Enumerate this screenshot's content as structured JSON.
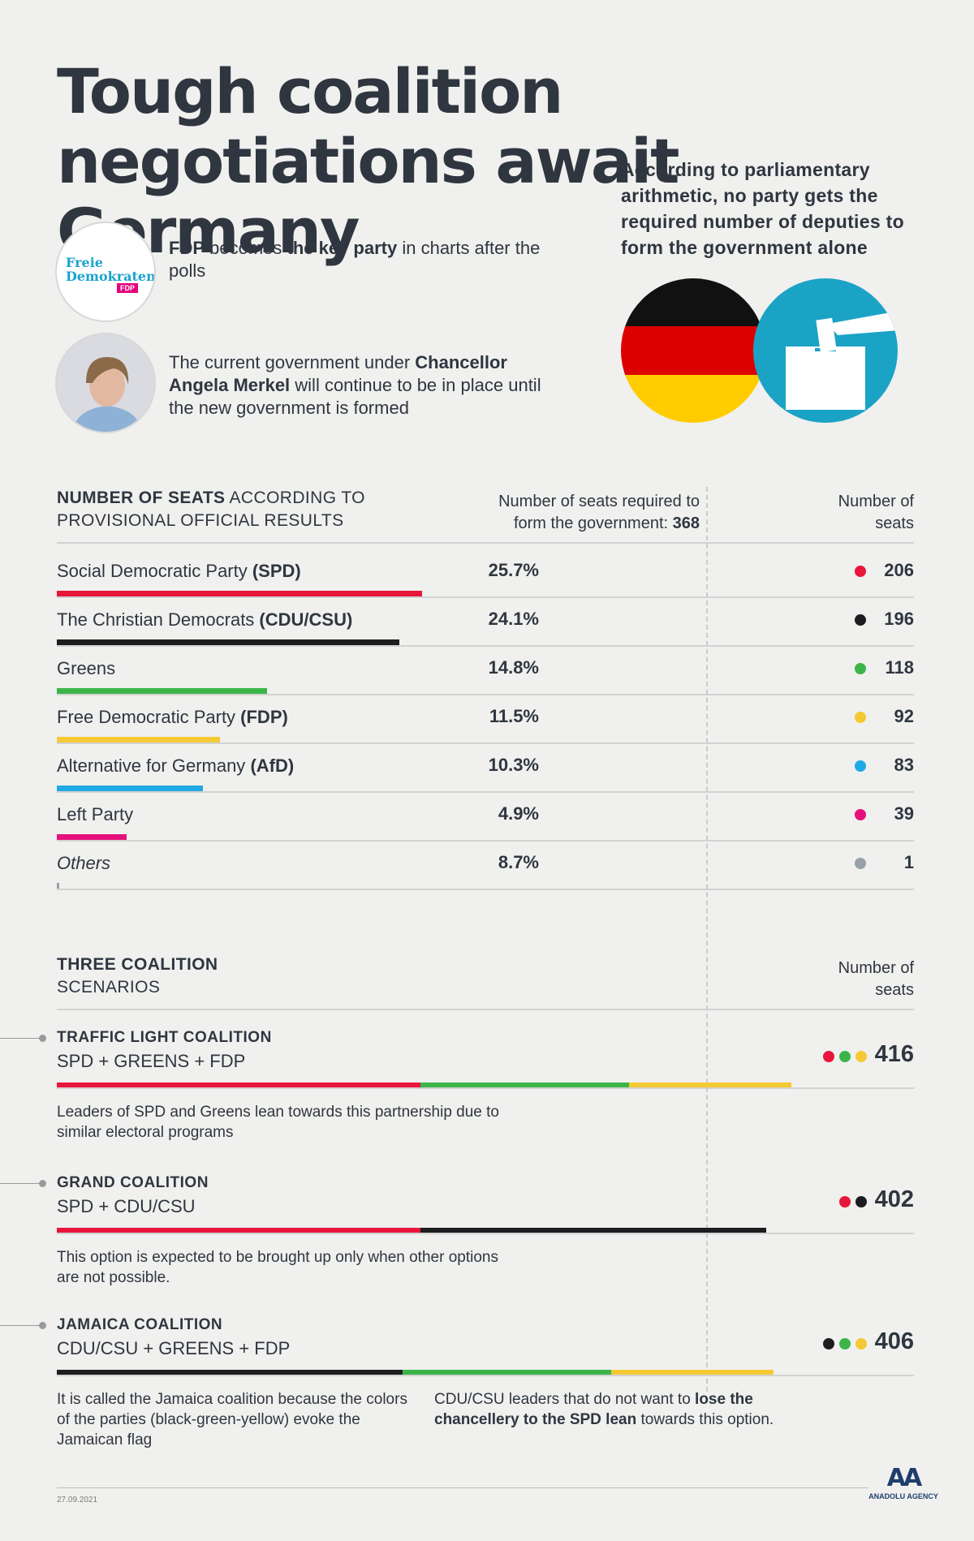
{
  "title": "Tough coalition negotiations await Germany",
  "intro": "According to parliamentary arithmetic, no party gets the required number of deputies to form the government alone",
  "fdp_logo": {
    "line1": "Freie",
    "line2": "Demokraten",
    "tag": "FDP"
  },
  "note_fdp": {
    "a": "FDP",
    "b": " becomes ",
    "c": "the key party",
    "d": " in charts after the polls"
  },
  "note_merkel": {
    "a": "The current government under ",
    "b": "Chancellor Angela Merkel",
    "c": " will continue to be in place until the new government is formed"
  },
  "seats_section": {
    "head_bold": "NUMBER OF SEATS",
    "head_rest": " ACCORDING TO",
    "head_line2": "PROVISIONAL OFFICIAL RESULTS",
    "req_line1": "Number of seats required to",
    "req_line2": "form the government: ",
    "req_value": "368",
    "seats_col_line1": "Number of",
    "seats_col_line2": "seats"
  },
  "chart_data": {
    "type": "bar",
    "parties": [
      {
        "name": "Social Democratic Party ",
        "abbr": "(SPD)",
        "percent": 25.7,
        "pct_label": "25.7%",
        "seats": 206,
        "seats_label": "206",
        "color": "#e8163a"
      },
      {
        "name": "The Christian Democrats ",
        "abbr": "(CDU/CSU)",
        "percent": 24.1,
        "pct_label": "24.1%",
        "seats": 196,
        "seats_label": "196",
        "color": "#1d1d1f"
      },
      {
        "name": "Greens",
        "abbr": "",
        "percent": 14.8,
        "pct_label": "14.8%",
        "seats": 118,
        "seats_label": "118",
        "color": "#3bb54a"
      },
      {
        "name": "Free Democratic Party ",
        "abbr": "(FDP)",
        "percent": 11.5,
        "pct_label": "11.5%",
        "seats": 92,
        "seats_label": "92",
        "color": "#f5c933"
      },
      {
        "name": "Alternative for Germany ",
        "abbr": "(AfD)",
        "percent": 10.3,
        "pct_label": "10.3%",
        "seats": 83,
        "seats_label": "83",
        "color": "#20a9e4"
      },
      {
        "name": "Left Party",
        "abbr": "",
        "percent": 4.9,
        "pct_label": "4.9%",
        "seats": 39,
        "seats_label": "39",
        "color": "#e5127d"
      },
      {
        "name": "Others",
        "abbr": "",
        "percent": 8.7,
        "pct_label": "8.7%",
        "seats": 1,
        "seats_label": "1",
        "color": "#9aa0a8",
        "italic": true
      }
    ]
  },
  "coalition_section": {
    "head_line1": "THREE COALITION",
    "head_line2": "SCENARIOS",
    "seats_col_line1": "Number of",
    "seats_col_line2": "seats"
  },
  "coalitions": [
    {
      "title": "TRAFFIC LIGHT COALITION",
      "parties": "SPD + GREENS + FDP",
      "total": 416,
      "total_label": "416",
      "segments": [
        {
          "seats": 206,
          "color": "#e8163a"
        },
        {
          "seats": 118,
          "color": "#3bb54a"
        },
        {
          "seats": 92,
          "color": "#f5c933"
        }
      ],
      "desc": "Leaders of SPD and Greens lean towards this partnership due to similar electoral programs"
    },
    {
      "title": "GRAND COALITION",
      "parties": "SPD + CDU/CSU",
      "total": 402,
      "total_label": "402",
      "segments": [
        {
          "seats": 206,
          "color": "#e8163a"
        },
        {
          "seats": 196,
          "color": "#1d1d1f"
        }
      ],
      "desc": "This option is expected to be brought up only when other options are not possible."
    },
    {
      "title": "JAMAICA COALITION",
      "parties": "CDU/CSU + GREENS + FDP",
      "total": 406,
      "total_label": "406",
      "segments": [
        {
          "seats": 196,
          "color": "#1d1d1f"
        },
        {
          "seats": 118,
          "color": "#3bb54a"
        },
        {
          "seats": 92,
          "color": "#f5c933"
        }
      ],
      "desc": "It is called the Jamaica coalition because the colors of the parties (black-green-yellow) evoke the Jamaican flag",
      "desc2": {
        "a": "CDU/CSU leaders that do not want to ",
        "b": "lose the chancellery to the SPD lean",
        "c": " towards this option."
      }
    }
  ],
  "footer": {
    "date": "27.09.2021",
    "agency": "ANADOLU AGENCY",
    "logo_mark": "AA"
  }
}
